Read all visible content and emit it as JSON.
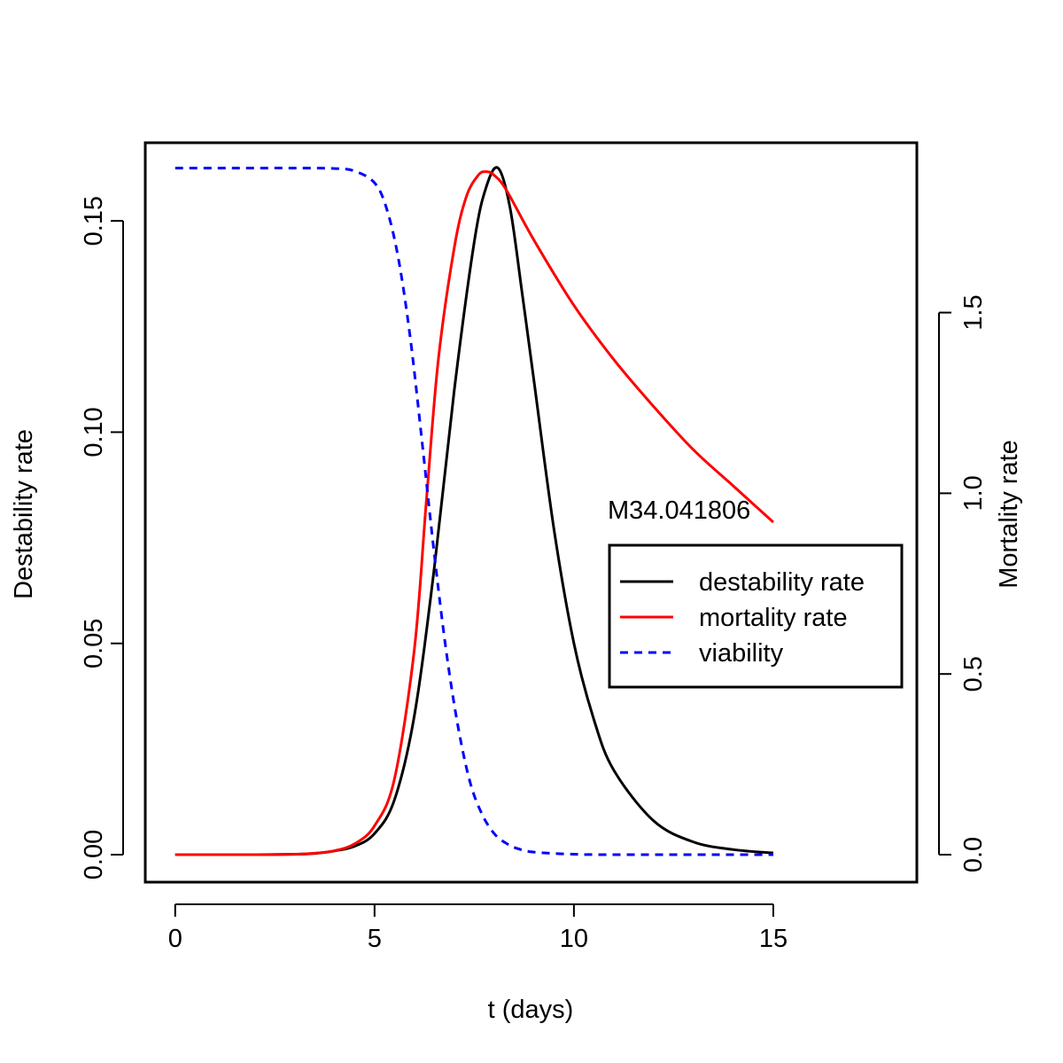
{
  "chart_data": {
    "type": "line",
    "title": "",
    "xlabel": "t (days)",
    "ylabel_left": "Destability rate",
    "ylabel_right": "Mortality rate",
    "xlim": [
      -0.75,
      18.6
    ],
    "ylim_left": [
      -0.0065,
      0.1685
    ],
    "ylim_right": [
      -0.076,
      1.97
    ],
    "x_ticks": [
      0,
      5,
      10,
      15
    ],
    "y_ticks_left": [
      0.0,
      0.05,
      0.1,
      0.15
    ],
    "y_tick_labels_left": [
      "0.00",
      "0.05",
      "0.10",
      "0.15"
    ],
    "y_ticks_right": [
      0.0,
      0.5,
      1.0,
      1.5
    ],
    "y_tick_labels_right": [
      "0.0",
      "0.5",
      "1.0",
      "1.5"
    ],
    "annotation": "M34.041806",
    "grid": false,
    "legend": {
      "placement": "right",
      "entries": [
        {
          "label": "destability rate",
          "color": "#000000",
          "style": "solid"
        },
        {
          "label": "mortality rate",
          "color": "#ff0000",
          "style": "solid"
        },
        {
          "label": "viability",
          "color": "#0000ff",
          "style": "dashed"
        }
      ]
    },
    "series": [
      {
        "name": "destability rate",
        "axis": "left",
        "color": "#000000",
        "style": "solid",
        "x": [
          0,
          1,
          2,
          3,
          3.5,
          4,
          4.5,
          5,
          5.5,
          6,
          6.5,
          7,
          7.5,
          7.8,
          8.1,
          8.4,
          8.7,
          9,
          9.5,
          10,
          10.5,
          11,
          12,
          13,
          14,
          15
        ],
        "y": [
          0,
          0,
          0,
          0.0001,
          0.0003,
          0.0009,
          0.002,
          0.005,
          0.013,
          0.033,
          0.068,
          0.11,
          0.145,
          0.158,
          0.1625,
          0.153,
          0.133,
          0.112,
          0.077,
          0.05,
          0.032,
          0.02,
          0.008,
          0.003,
          0.0012,
          0.0004
        ]
      },
      {
        "name": "mortality rate",
        "axis": "right",
        "color": "#ff0000",
        "style": "solid",
        "x": [
          0,
          1,
          2,
          3,
          3.5,
          4,
          4.5,
          5,
          5.5,
          6,
          6.3,
          6.6,
          7,
          7.3,
          7.6,
          7.8,
          8,
          8.3,
          9,
          10,
          11,
          12,
          13,
          14,
          15
        ],
        "y": [
          0,
          0,
          0,
          0.001,
          0.004,
          0.011,
          0.03,
          0.08,
          0.21,
          0.57,
          0.98,
          1.37,
          1.68,
          1.82,
          1.88,
          1.89,
          1.88,
          1.84,
          1.7,
          1.52,
          1.37,
          1.24,
          1.12,
          1.02,
          0.92
        ]
      },
      {
        "name": "viability",
        "axis": "left",
        "color": "#0000ff",
        "style": "dashed",
        "x": [
          0,
          1,
          2,
          3,
          4,
          4.5,
          5,
          5.3,
          5.6,
          5.9,
          6.2,
          6.5,
          6.8,
          7.1,
          7.4,
          7.7,
          8,
          8.3,
          8.6,
          9,
          10,
          11,
          12,
          13,
          14,
          15
        ],
        "y": [
          0.1625,
          0.1625,
          0.1625,
          0.1625,
          0.1624,
          0.1618,
          0.159,
          0.153,
          0.141,
          0.122,
          0.097,
          0.071,
          0.048,
          0.03,
          0.017,
          0.0095,
          0.005,
          0.0027,
          0.0014,
          0.0006,
          0.0001,
          0,
          0,
          0,
          0,
          0
        ]
      }
    ]
  }
}
